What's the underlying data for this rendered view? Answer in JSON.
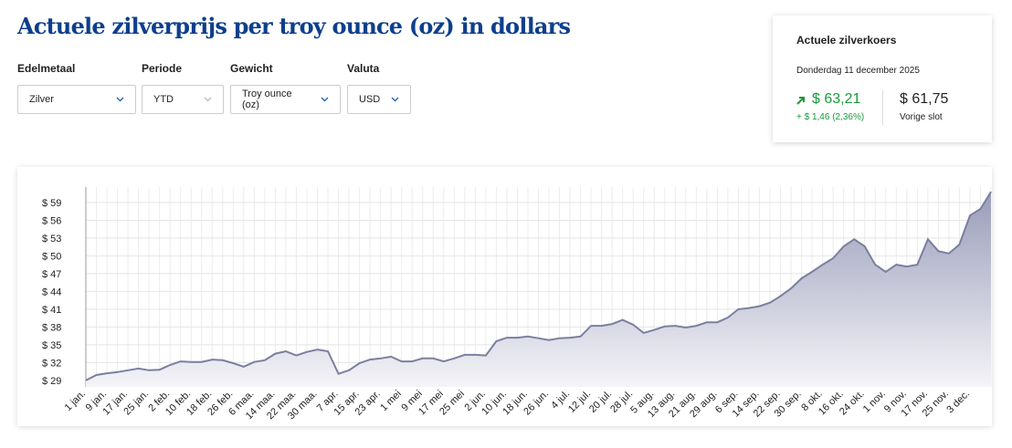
{
  "header": {
    "title": "Actuele zilverprijs per troy ounce (oz) in dollars"
  },
  "filters": [
    {
      "label": "Edelmetaal",
      "value": "Zilver"
    },
    {
      "label": "Periode",
      "value": "YTD"
    },
    {
      "label": "Gewicht",
      "value": "Troy ounce (oz)"
    },
    {
      "label": "Valuta",
      "value": "USD"
    }
  ],
  "price_card": {
    "title": "Actuele zilverkoers",
    "date": "Donderdag 11 december 2025",
    "price": "$ 63,21",
    "change": "+ $ 1,46 (2,36%)",
    "previous": "$ 61,75",
    "previous_label": "Vorige slot"
  },
  "chart_data": {
    "type": "area",
    "categories": [
      "1 jan.",
      null,
      "9 jan.",
      null,
      "17 jan.",
      null,
      "25 jan.",
      null,
      "2 feb.",
      null,
      "10 feb.",
      null,
      "18 feb.",
      null,
      "26 feb.",
      null,
      "6 maa.",
      null,
      "14 maa.",
      null,
      "22 maa.",
      null,
      "30 maa.",
      null,
      "7 apr.",
      null,
      "15 apr.",
      null,
      "23 apr.",
      null,
      "1 mei",
      null,
      "9 mei",
      null,
      "17 mei",
      null,
      "25 mei",
      null,
      "2 jun.",
      null,
      "10 jun.",
      null,
      "18 jun.",
      null,
      "26 jun.",
      null,
      "4 jul.",
      null,
      "12 jul.",
      null,
      "20 jul.",
      null,
      "28 jul.",
      null,
      "5 aug.",
      null,
      "13 aug.",
      null,
      "21 aug.",
      null,
      "29 aug.",
      null,
      "6 sep.",
      null,
      "14 sep.",
      null,
      "22 sep.",
      null,
      "30 sep.",
      null,
      "8 okt.",
      null,
      "16 okt.",
      null,
      "24 okt.",
      null,
      "1 nov.",
      null,
      "9 nov.",
      null,
      "17 nov.",
      null,
      "25 nov.",
      null,
      "3 dec.",
      null,
      null
    ],
    "values": [
      29.0,
      29.9,
      30.2,
      30.4,
      30.7,
      31.0,
      30.7,
      30.8,
      31.6,
      32.2,
      32.1,
      32.1,
      32.5,
      32.4,
      31.9,
      31.3,
      32.1,
      32.4,
      33.5,
      33.9,
      33.2,
      33.8,
      34.2,
      33.9,
      30.1,
      30.7,
      31.9,
      32.5,
      32.7,
      33.0,
      32.2,
      32.2,
      32.7,
      32.7,
      32.2,
      32.7,
      33.3,
      33.3,
      33.2,
      35.6,
      36.2,
      36.2,
      36.4,
      36.1,
      35.8,
      36.1,
      36.2,
      36.4,
      38.2,
      38.2,
      38.5,
      39.2,
      38.4,
      37.0,
      37.5,
      38.1,
      38.2,
      37.9,
      38.2,
      38.8,
      38.8,
      39.6,
      41.0,
      41.2,
      41.5,
      42.1,
      43.2,
      44.5,
      46.2,
      47.3,
      48.5,
      49.6,
      51.6,
      52.8,
      51.6,
      48.5,
      47.3,
      48.5,
      48.2,
      48.5,
      52.8,
      50.8,
      50.4,
      51.9,
      56.8,
      57.9,
      60.8
    ],
    "color": "#7b7f9e",
    "ylim": [
      27.9,
      61.6
    ],
    "yticks": [
      {
        "value": 29,
        "label": "$ 29"
      },
      {
        "value": 32,
        "label": "$ 32"
      },
      {
        "value": 35,
        "label": "$ 35"
      },
      {
        "value": 38,
        "label": "$ 38"
      },
      {
        "value": 41,
        "label": "$ 41"
      },
      {
        "value": 44,
        "label": "$ 44"
      },
      {
        "value": 47,
        "label": "$ 47"
      },
      {
        "value": 50,
        "label": "$ 50"
      },
      {
        "value": 53,
        "label": "$ 53"
      },
      {
        "value": 56,
        "label": "$ 56"
      },
      {
        "value": 59,
        "label": "$ 59"
      }
    ],
    "grid": true
  }
}
